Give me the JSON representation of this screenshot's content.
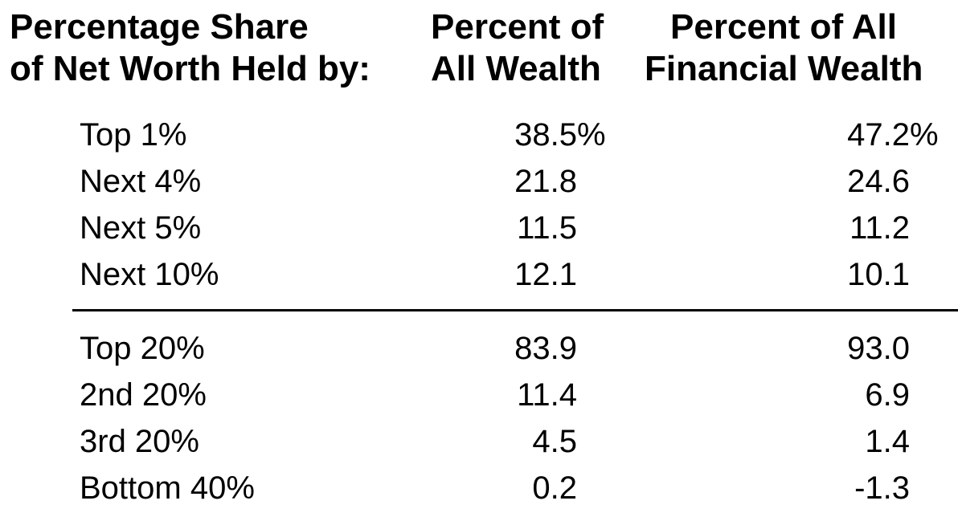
{
  "chart_data": {
    "type": "table",
    "columns": [
      "Percentage Share of Net Worth Held by:",
      "Percent of All Wealth",
      "Percent of All Financial Wealth"
    ],
    "header_lines": {
      "col0": [
        "Percentage Share",
        "of Net Worth Held by:"
      ],
      "col1": [
        "Percent of",
        "All Wealth"
      ],
      "col2": [
        "Percent of All",
        "Financial Wealth"
      ]
    },
    "groups": [
      {
        "rows": [
          {
            "label": "Top 1%",
            "all_wealth": "38.5%",
            "financial_wealth": "47.2%"
          },
          {
            "label": "Next 4%",
            "all_wealth": "21.8",
            "financial_wealth": "24.6"
          },
          {
            "label": "Next 5%",
            "all_wealth": "11.5",
            "financial_wealth": "11.2"
          },
          {
            "label": "Next 10%",
            "all_wealth": "12.1",
            "financial_wealth": "10.1"
          }
        ]
      },
      {
        "rows": [
          {
            "label": "Top 20%",
            "all_wealth": "83.9",
            "financial_wealth": "93.0"
          },
          {
            "label": "2nd 20%",
            "all_wealth": "11.4",
            "financial_wealth": "6.9"
          },
          {
            "label": "3rd 20%",
            "all_wealth": "4.5",
            "financial_wealth": "1.4"
          },
          {
            "label": "Bottom 40%",
            "all_wealth": "0.2",
            "financial_wealth": "-1.3"
          }
        ]
      }
    ]
  }
}
